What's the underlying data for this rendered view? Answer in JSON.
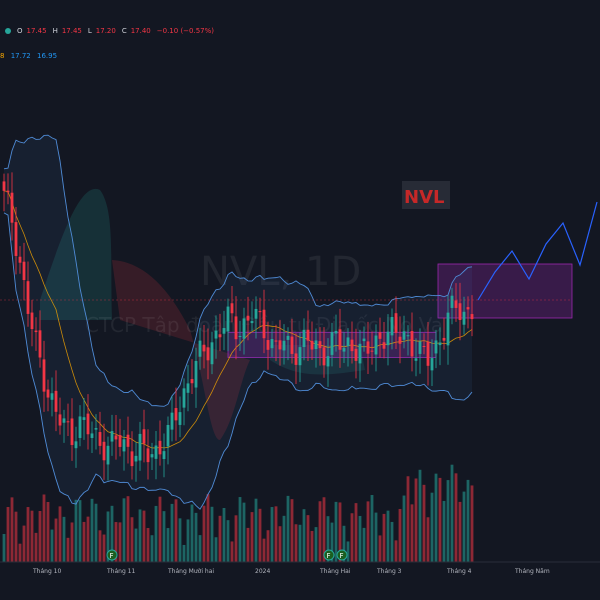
{
  "header": {
    "o_label": "O",
    "o": "17.45",
    "h_label": "H",
    "h": "17.45",
    "l_label": "L",
    "l": "17.20",
    "c_label": "C",
    "c": "17.40",
    "change": "−0.10 (−0.57%)"
  },
  "indicators": {
    "v1": "8",
    "v2": "17.72",
    "v3": "16.95"
  },
  "watermark": {
    "symbol": "NVL, 1D",
    "company": "CTCP Tập đoàn Đầu tư Địa ốc No Va"
  },
  "annotation": {
    "text": "NVL",
    "color": "#c62828"
  },
  "colors": {
    "up": "#26a69a",
    "down": "#f23645",
    "band": "#4f8bd6",
    "projection": "#2962ff",
    "box": "#9c27b0"
  },
  "chart_data": {
    "type": "candlestick",
    "x_labels": [
      "Tháng 10",
      "Tháng 11",
      "Tháng Mười hai",
      "2024",
      "Tháng Hai",
      "Tháng 3",
      "Tháng 4",
      "Tháng Năm"
    ],
    "event_markers": [
      "F",
      "F",
      "F"
    ],
    "ohlc_path_close": [
      21.0,
      20.4,
      19.1,
      17.6,
      16.5,
      15.6,
      14.7,
      14.0,
      13.7,
      13.5,
      13.8,
      13.6,
      13.4,
      13.2,
      13.0,
      13.3,
      13.1,
      12.9,
      13.0,
      12.8,
      12.9,
      13.2,
      13.5,
      14.2,
      14.9,
      15.5,
      15.9,
      16.2,
      16.6,
      16.9,
      17.1,
      16.8,
      17.0,
      17.3,
      16.9,
      16.6,
      16.2,
      16.4,
      16.0,
      16.3,
      16.5,
      16.2,
      16.0,
      16.3,
      16.5,
      16.1,
      16.4,
      16.2,
      16.0,
      16.3,
      16.6,
      16.8,
      16.5,
      16.7,
      16.3,
      16.0,
      15.8,
      16.2,
      16.6,
      17.2,
      17.6,
      17.3,
      17.4
    ],
    "range_box_low": 15.9,
    "range_box_high": 16.7,
    "breakout_box_low": 16.4,
    "breakout_box_high": 17.8,
    "projection": [
      17.2,
      17.6,
      17.9,
      17.5,
      18.0,
      18.3,
      17.7,
      18.6
    ]
  }
}
